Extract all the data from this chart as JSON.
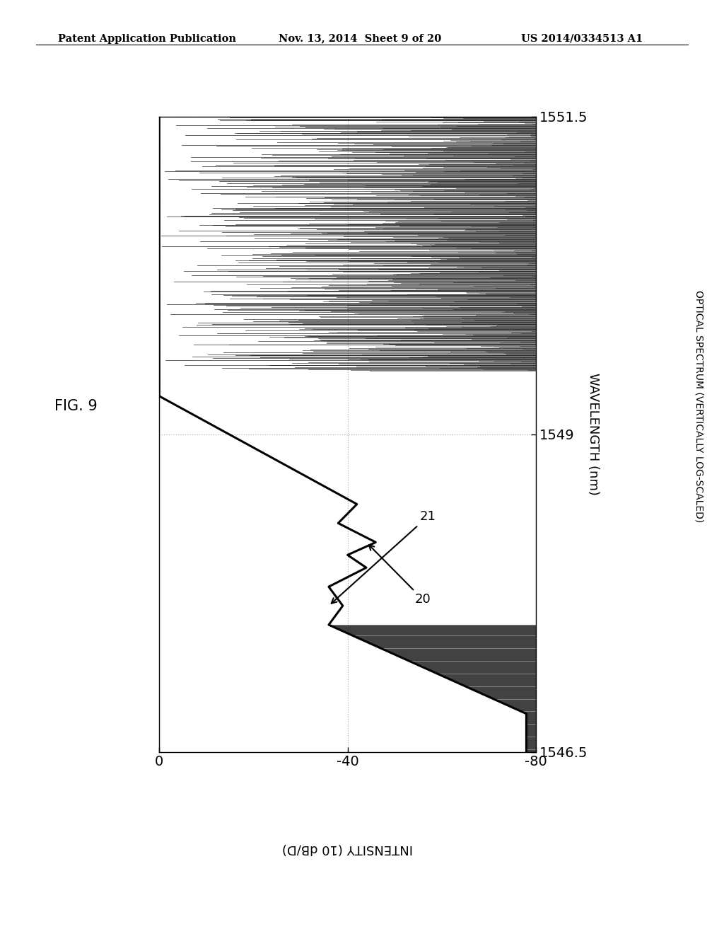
{
  "header_left": "Patent Application Publication",
  "header_mid": "Nov. 13, 2014  Sheet 9 of 20",
  "header_right": "US 2014/0334513 A1",
  "fig_label": "FIG. 9",
  "x_label": "WAVELENGTH (nm)",
  "y_label": "INTENSITY (10 dB/D)",
  "right_label": "OPTICAL SPECTRUM (VERTICALLY LOG-SCALED)",
  "x_ticks": [
    0,
    -40,
    -80
  ],
  "y_ticks": [
    1546.5,
    1549,
    1551.5
  ],
  "xlim_left": 0,
  "xlim_right": -80,
  "ylim_bottom": 1546.5,
  "ylim_top": 1551.5,
  "annotation_21": "21",
  "annotation_20": "20",
  "background_color": "#ffffff",
  "grid_color": "#aaaaaa",
  "line_color": "#000000"
}
